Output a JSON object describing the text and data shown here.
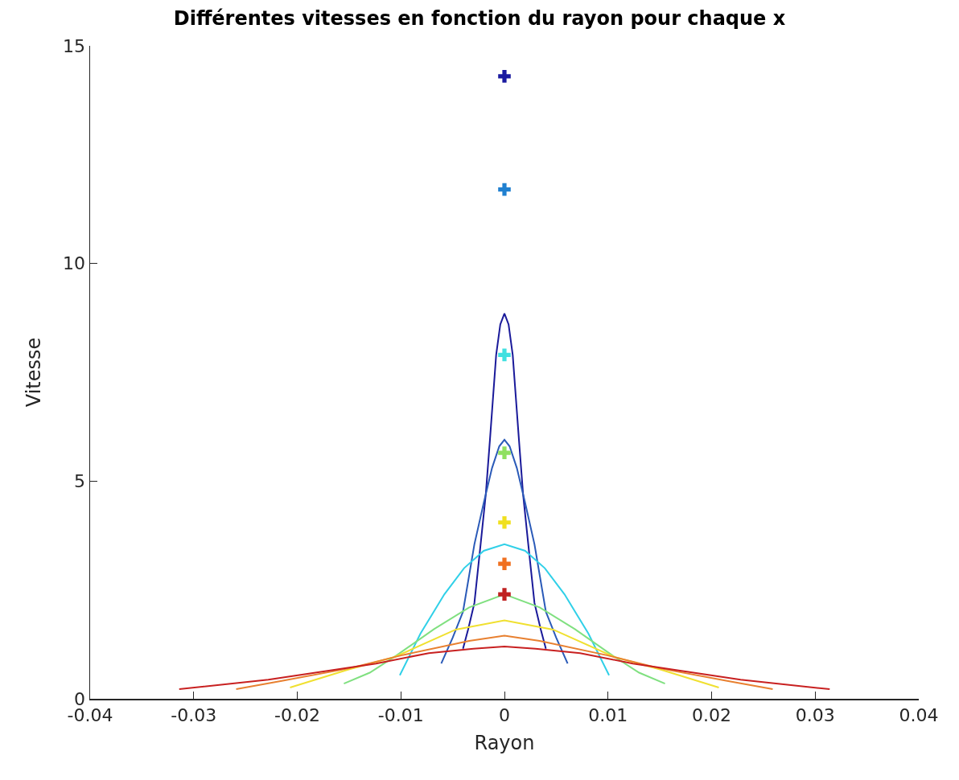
{
  "chart_data": {
    "type": "line",
    "title": "Différentes vitesses en fonction du rayon pour chaque x",
    "xlabel": "Rayon",
    "ylabel": "Vitesse",
    "xlim": [
      -0.04,
      0.04
    ],
    "xticks": [
      -0.04,
      -0.03,
      -0.02,
      -0.01,
      0,
      0.01,
      0.02,
      0.03,
      0.04
    ],
    "ylim": [
      0,
      15
    ],
    "yticks": [
      0,
      5,
      10,
      15
    ],
    "grid": false,
    "series": [
      {
        "marker": "none",
        "color": "#1a1a9a",
        "x": [
          -0.004,
          -0.0035,
          -0.0029,
          -0.0023,
          -0.0018,
          -0.0014,
          -0.0008,
          -0.0004,
          0,
          0.0004,
          0.0008,
          0.0014,
          0.0018,
          0.0023,
          0.0029,
          0.0035,
          0.004
        ],
        "values": [
          1.15,
          1.6,
          2.2,
          3.55,
          4.7,
          5.95,
          7.9,
          8.6,
          8.85,
          8.6,
          7.9,
          5.95,
          4.7,
          3.55,
          2.2,
          1.6,
          1.15
        ]
      },
      {
        "marker": "none",
        "color": "#2a5ab8",
        "x": [
          -0.0061,
          -0.005,
          -0.004,
          -0.0029,
          -0.002,
          -0.0012,
          -0.0005,
          0,
          0.0005,
          0.0012,
          0.002,
          0.0029,
          0.004,
          0.005,
          0.0061
        ],
        "values": [
          0.81,
          1.4,
          2.0,
          3.55,
          4.5,
          5.3,
          5.8,
          5.95,
          5.8,
          5.3,
          4.5,
          3.55,
          2.0,
          1.4,
          0.81
        ]
      },
      {
        "marker": "none",
        "color": "#30d0e8",
        "x": [
          -0.0101,
          -0.0081,
          -0.0058,
          -0.0039,
          -0.002,
          0,
          0.002,
          0.0039,
          0.0058,
          0.0081,
          0.0101
        ],
        "values": [
          0.54,
          1.5,
          2.4,
          3.0,
          3.4,
          3.55,
          3.4,
          3.0,
          2.4,
          1.5,
          0.54
        ]
      },
      {
        "marker": "none",
        "color": "#80e080",
        "x": [
          -0.0155,
          -0.013,
          -0.0104,
          -0.0068,
          -0.0034,
          0,
          0.0034,
          0.0068,
          0.0104,
          0.013,
          0.0155
        ],
        "values": [
          0.35,
          0.6,
          1.0,
          1.6,
          2.1,
          2.4,
          2.1,
          1.6,
          1.0,
          0.6,
          0.35
        ]
      },
      {
        "marker": "none",
        "color": "#f0e030",
        "x": [
          -0.0207,
          -0.0151,
          -0.0106,
          -0.0047,
          0,
          0.0047,
          0.0106,
          0.0151,
          0.0207
        ],
        "values": [
          0.26,
          0.67,
          0.96,
          1.59,
          1.8,
          1.59,
          0.96,
          0.67,
          0.26
        ]
      },
      {
        "marker": "none",
        "color": "#e88030",
        "x": [
          -0.0259,
          -0.0215,
          -0.015,
          -0.0099,
          -0.0034,
          0,
          0.0034,
          0.0099,
          0.015,
          0.0215,
          0.0259
        ],
        "values": [
          0.22,
          0.41,
          0.7,
          1.0,
          1.33,
          1.45,
          1.33,
          1.0,
          0.7,
          0.41,
          0.22
        ]
      },
      {
        "marker": "none",
        "color": "#c82020",
        "x": [
          -0.0314,
          -0.0228,
          -0.0124,
          -0.0073,
          -0.003,
          0,
          0.003,
          0.0073,
          0.0124,
          0.0228,
          0.0314
        ],
        "values": [
          0.22,
          0.44,
          0.81,
          1.05,
          1.15,
          1.2,
          1.15,
          1.05,
          0.81,
          0.44,
          0.22
        ]
      },
      {
        "type": "scatter",
        "marker": "cross",
        "color": "#1a1aa0",
        "x": [
          0
        ],
        "values": [
          14.3
        ]
      },
      {
        "type": "scatter",
        "marker": "cross",
        "color": "#2080d0",
        "x": [
          0
        ],
        "values": [
          11.7
        ]
      },
      {
        "type": "scatter",
        "marker": "cross",
        "color": "#40e0e0",
        "x": [
          0
        ],
        "values": [
          7.9
        ]
      },
      {
        "type": "scatter",
        "marker": "cross",
        "color": "#90e060",
        "x": [
          0
        ],
        "values": [
          5.65
        ]
      },
      {
        "type": "scatter",
        "marker": "cross",
        "color": "#f0e020",
        "x": [
          0
        ],
        "values": [
          4.05
        ]
      },
      {
        "type": "scatter",
        "marker": "cross",
        "color": "#f07020",
        "x": [
          0
        ],
        "values": [
          3.1
        ]
      },
      {
        "type": "scatter",
        "marker": "cross",
        "color": "#c02020",
        "x": [
          0
        ],
        "values": [
          2.4
        ]
      }
    ]
  }
}
